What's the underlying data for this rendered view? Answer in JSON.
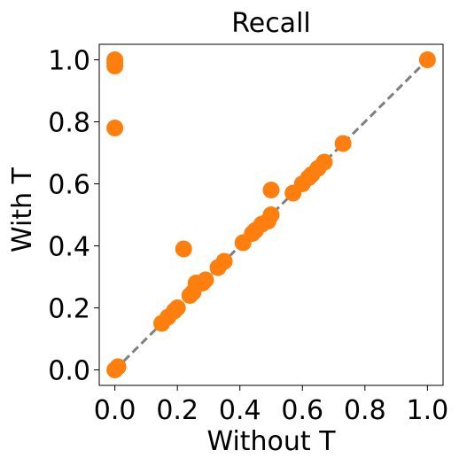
{
  "chart_data": {
    "type": "scatter",
    "title": "Recall",
    "xlabel": "Without T",
    "ylabel": "With T",
    "xlim": [
      -0.05,
      1.05
    ],
    "ylim": [
      -0.05,
      1.05
    ],
    "xticks": [
      "0.0",
      "0.2",
      "0.4",
      "0.6",
      "0.8",
      "1.0"
    ],
    "yticks": [
      "0.0",
      "0.2",
      "0.4",
      "0.6",
      "0.8",
      "1.0"
    ],
    "grid": false,
    "marker_color": "#ff7f0e",
    "reference_line": {
      "from": [
        0,
        0
      ],
      "to": [
        1,
        1
      ],
      "style": "dashed",
      "color": "#7f7f7f"
    },
    "points": [
      [
        0.0,
        1.0
      ],
      [
        0.0,
        0.99
      ],
      [
        0.0,
        0.98
      ],
      [
        0.0,
        0.78
      ],
      [
        0.0,
        0.0
      ],
      [
        0.01,
        0.01
      ],
      [
        0.15,
        0.15
      ],
      [
        0.17,
        0.17
      ],
      [
        0.19,
        0.19
      ],
      [
        0.2,
        0.2
      ],
      [
        0.22,
        0.39
      ],
      [
        0.24,
        0.24
      ],
      [
        0.25,
        0.25
      ],
      [
        0.26,
        0.28
      ],
      [
        0.28,
        0.28
      ],
      [
        0.29,
        0.29
      ],
      [
        0.33,
        0.33
      ],
      [
        0.35,
        0.35
      ],
      [
        0.41,
        0.41
      ],
      [
        0.44,
        0.44
      ],
      [
        0.45,
        0.45
      ],
      [
        0.47,
        0.47
      ],
      [
        0.49,
        0.48
      ],
      [
        0.5,
        0.5
      ],
      [
        0.5,
        0.58
      ],
      [
        0.57,
        0.57
      ],
      [
        0.6,
        0.6
      ],
      [
        0.62,
        0.62
      ],
      [
        0.63,
        0.63
      ],
      [
        0.65,
        0.65
      ],
      [
        0.67,
        0.67
      ],
      [
        0.73,
        0.73
      ],
      [
        1.0,
        1.0
      ]
    ]
  }
}
